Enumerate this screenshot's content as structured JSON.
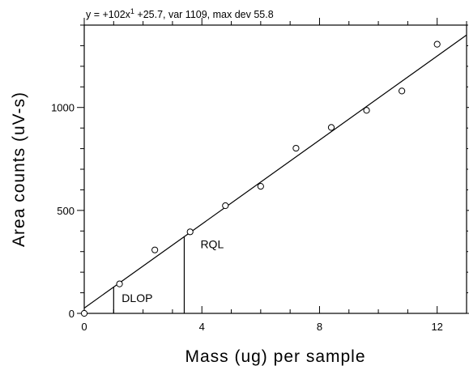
{
  "chart_data": {
    "type": "scatter",
    "equation_label": "y =  +102x",
    "equation_sup": "1",
    "equation_rest": " +25.7, var 1109, max dev 55.8",
    "xlabel": "Mass (ug) per sample",
    "ylabel": "Area counts (uV-s)",
    "xlim": [
      0,
      13
    ],
    "ylim": [
      0,
      1400
    ],
    "x_ticks": [
      0,
      4,
      8,
      12
    ],
    "y_ticks": [
      0,
      500,
      1000
    ],
    "x_minor_step": 1,
    "y_minor_step": 100,
    "points": [
      {
        "x": 0,
        "y": 0
      },
      {
        "x": 1.2,
        "y": 143
      },
      {
        "x": 2.4,
        "y": 308
      },
      {
        "x": 3.6,
        "y": 396
      },
      {
        "x": 4.8,
        "y": 523
      },
      {
        "x": 6.0,
        "y": 617
      },
      {
        "x": 7.2,
        "y": 802
      },
      {
        "x": 8.4,
        "y": 903
      },
      {
        "x": 9.6,
        "y": 986
      },
      {
        "x": 10.8,
        "y": 1080
      },
      {
        "x": 12.0,
        "y": 1307
      }
    ],
    "fit": {
      "slope": 102,
      "intercept": 25.7
    },
    "annotations": [
      {
        "label": "DLOP",
        "x": 1.0
      },
      {
        "label": "RQL",
        "x": 3.4
      }
    ]
  }
}
